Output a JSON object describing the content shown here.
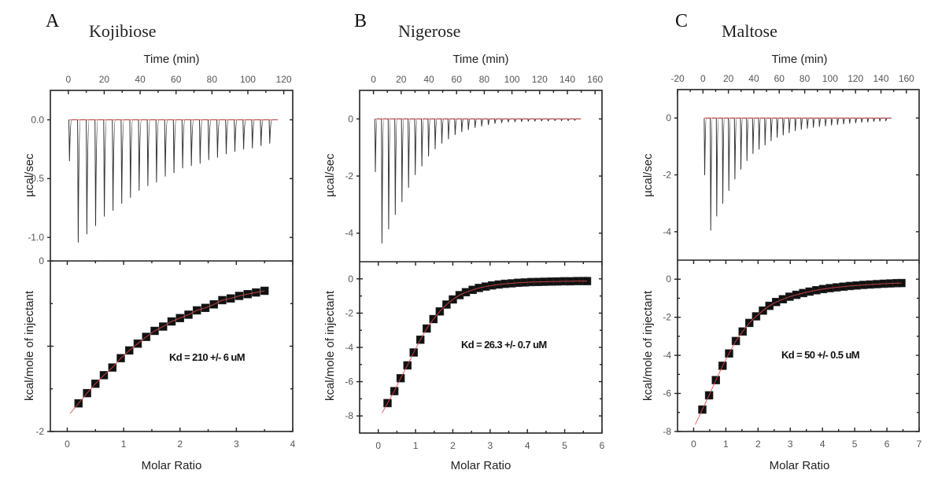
{
  "chart_data": [
    {
      "panel": "A",
      "title": "Kojibiose",
      "type": "line",
      "raw": {
        "xlabel": "Time (min)",
        "ylabel": "µcal/sec",
        "xlim": [
          -10,
          125
        ],
        "ylim": [
          -1.2,
          0.25
        ],
        "xticks": [
          0,
          20,
          40,
          60,
          80,
          100,
          120
        ],
        "yticks": [
          0.0,
          -0.5,
          -1.0
        ],
        "ytick_labels": [
          "0.0",
          "-0.5",
          "-1.0"
        ],
        "baseline": 0.0,
        "injection_start": 0.3,
        "injection_interval": 4.85,
        "peak_minima": [
          -0.35,
          -1.04,
          -0.97,
          -0.9,
          -0.82,
          -0.77,
          -0.71,
          -0.66,
          -0.6,
          -0.56,
          -0.53,
          -0.48,
          -0.45,
          -0.41,
          -0.39,
          -0.37,
          -0.34,
          -0.32,
          -0.29,
          -0.27,
          -0.25,
          -0.24,
          -0.22,
          -0.2
        ]
      },
      "integrated": {
        "xlabel": "Molar Ratio",
        "ylabel": "kcal/mole of injectant",
        "xlim": [
          -0.3,
          4
        ],
        "ylim": [
          -2,
          0
        ],
        "xticks": [
          0,
          1,
          2,
          3,
          4
        ],
        "yticks": [
          0,
          -1,
          -2
        ],
        "ytick_labels": [
          "0",
          "",
          "-2"
        ],
        "x": [
          0.2,
          0.35,
          0.5,
          0.65,
          0.8,
          0.95,
          1.1,
          1.25,
          1.4,
          1.55,
          1.7,
          1.85,
          2.0,
          2.15,
          2.3,
          2.45,
          2.6,
          2.75,
          2.9,
          3.05,
          3.2,
          3.35,
          3.5
        ],
        "y": [
          -1.67,
          -1.55,
          -1.44,
          -1.34,
          -1.25,
          -1.14,
          -1.05,
          -0.97,
          -0.89,
          -0.82,
          -0.77,
          -0.71,
          -0.67,
          -0.63,
          -0.58,
          -0.55,
          -0.51,
          -0.46,
          -0.44,
          -0.41,
          -0.39,
          -0.37,
          -0.35
        ],
        "fit_x_range": [
          0.05,
          3.5
        ],
        "annotation": "Kd = 210 +/- 6 uM"
      }
    },
    {
      "panel": "B",
      "title": "Nigerose",
      "type": "line",
      "raw": {
        "xlabel": "Time (min)",
        "ylabel": "µcal/sec",
        "xlim": [
          -10,
          165
        ],
        "ylim": [
          -5,
          1
        ],
        "xticks": [
          0,
          20,
          40,
          60,
          80,
          100,
          120,
          140,
          160
        ],
        "yticks": [
          0,
          -2,
          -4
        ],
        "ytick_labels": [
          "0",
          "-2",
          "-4"
        ],
        "baseline": 0.0,
        "injection_start": 1.0,
        "injection_interval": 4.8,
        "peak_minima": [
          -1.85,
          -4.35,
          -3.85,
          -3.35,
          -2.9,
          -2.4,
          -1.95,
          -1.65,
          -1.3,
          -1.05,
          -0.85,
          -0.7,
          -0.55,
          -0.45,
          -0.38,
          -0.3,
          -0.25,
          -0.2,
          -0.16,
          -0.13,
          -0.11,
          -0.1,
          -0.09,
          -0.08,
          -0.08,
          -0.07,
          -0.07,
          -0.06,
          -0.06,
          -0.06,
          -0.05
        ]
      },
      "integrated": {
        "xlabel": "Molar Ratio",
        "ylabel": "kcal/mole of injectant",
        "xlim": [
          -0.5,
          6
        ],
        "ylim": [
          -9,
          1
        ],
        "xticks": [
          0,
          1,
          2,
          3,
          4,
          5,
          6
        ],
        "yticks": [
          0,
          -2,
          -4,
          -6,
          -8
        ],
        "ytick_labels": [
          "0",
          "-2",
          "-4",
          "-6",
          "-8"
        ],
        "x": [
          0.25,
          0.43,
          0.6,
          0.78,
          0.95,
          1.13,
          1.3,
          1.48,
          1.65,
          1.83,
          2.0,
          2.18,
          2.35,
          2.53,
          2.7,
          2.88,
          3.05,
          3.23,
          3.4,
          3.58,
          3.75,
          3.93,
          4.1,
          4.28,
          4.45,
          4.63,
          4.8,
          4.98,
          5.15,
          5.33,
          5.5,
          5.6
        ],
        "y": [
          -7.25,
          -6.55,
          -5.8,
          -5.05,
          -4.3,
          -3.55,
          -2.9,
          -2.35,
          -1.9,
          -1.5,
          -1.2,
          -0.95,
          -0.78,
          -0.64,
          -0.53,
          -0.45,
          -0.38,
          -0.33,
          -0.29,
          -0.26,
          -0.23,
          -0.21,
          -0.19,
          -0.18,
          -0.17,
          -0.16,
          -0.15,
          -0.14,
          -0.14,
          -0.13,
          -0.13,
          -0.13
        ],
        "fit_x_range": [
          0.1,
          5.6
        ],
        "annotation": "Kd = 26.3 +/- 0.7 uM"
      }
    },
    {
      "panel": "C",
      "title": "Maltose",
      "type": "line",
      "raw": {
        "xlabel": "Time (min)",
        "ylabel": "µcal/sec",
        "xlim": [
          -20,
          170
        ],
        "ylim": [
          -5,
          1
        ],
        "xticks": [
          -20,
          0,
          20,
          40,
          60,
          80,
          100,
          120,
          140,
          160
        ],
        "yticks": [
          0,
          -2,
          -4
        ],
        "ytick_labels": [
          "0",
          "-2",
          "-4"
        ],
        "baseline": 0.0,
        "injection_start": 1.0,
        "injection_interval": 4.75,
        "peak_minima": [
          -2.0,
          -3.95,
          -3.45,
          -3.0,
          -2.55,
          -2.15,
          -1.8,
          -1.5,
          -1.25,
          -1.1,
          -0.95,
          -0.8,
          -0.68,
          -0.6,
          -0.52,
          -0.45,
          -0.4,
          -0.36,
          -0.33,
          -0.3,
          -0.28,
          -0.25,
          -0.23,
          -0.21,
          -0.19,
          -0.17,
          -0.15,
          -0.14,
          -0.12,
          -0.11,
          -0.1
        ]
      },
      "integrated": {
        "xlabel": "Molar Ratio",
        "ylabel": "kcal/mole of injectant",
        "xlim": [
          -0.5,
          7
        ],
        "ylim": [
          -8,
          1
        ],
        "xticks": [
          0,
          1,
          2,
          3,
          4,
          5,
          6,
          7
        ],
        "yticks": [
          0,
          -2,
          -4,
          -6,
          -8
        ],
        "ytick_labels": [
          "0",
          "-2",
          "-4",
          "-6",
          "-8"
        ],
        "x": [
          0.27,
          0.48,
          0.69,
          0.9,
          1.1,
          1.31,
          1.52,
          1.73,
          1.94,
          2.15,
          2.35,
          2.56,
          2.77,
          2.98,
          3.19,
          3.4,
          3.6,
          3.81,
          4.02,
          4.23,
          4.44,
          4.65,
          4.85,
          5.06,
          5.27,
          5.48,
          5.69,
          5.9,
          6.1,
          6.3,
          6.45
        ],
        "y": [
          -6.85,
          -6.1,
          -5.3,
          -4.55,
          -3.9,
          -3.25,
          -2.75,
          -2.3,
          -1.95,
          -1.65,
          -1.4,
          -1.2,
          -1.05,
          -0.92,
          -0.82,
          -0.73,
          -0.65,
          -0.58,
          -0.52,
          -0.47,
          -0.43,
          -0.39,
          -0.36,
          -0.33,
          -0.3,
          -0.28,
          -0.26,
          -0.24,
          -0.22,
          -0.21,
          -0.2
        ],
        "fit_x_range": [
          0.05,
          6.45
        ],
        "annotation": "Kd = 50 +/- 0.5 uM"
      }
    }
  ]
}
